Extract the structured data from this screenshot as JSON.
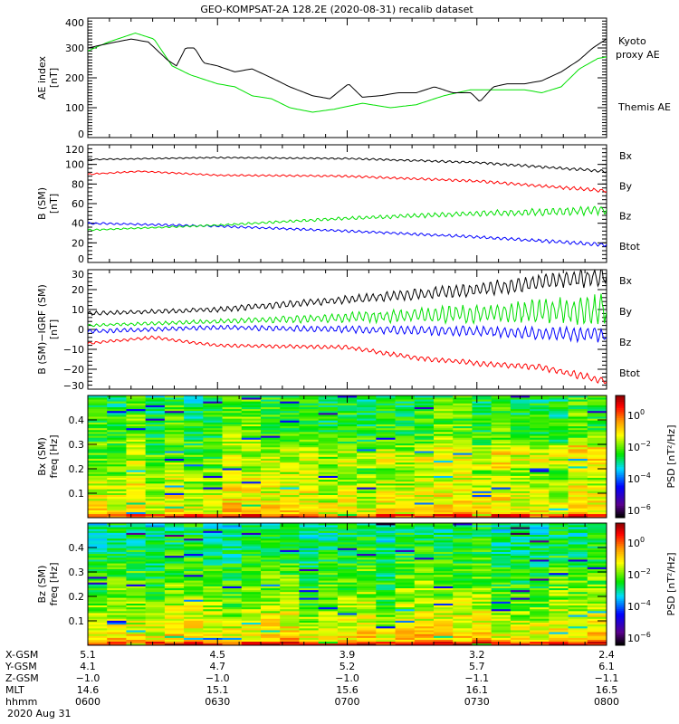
{
  "title": "GEO-KOMPSAT-2A 128.2E (2020-08-31) recalib dataset",
  "chart_data": [
    {
      "type": "line",
      "id": "ae",
      "ylabel": [
        "AE index",
        "[nT]"
      ],
      "ylim": [
        0,
        400
      ],
      "yticks": [
        0,
        100,
        200,
        300,
        400
      ],
      "xlim_minutes": [
        0,
        120
      ],
      "series": [
        {
          "name": "Kyoto proxy AE",
          "label_lines": [
            "Kyoto",
            "proxy AE"
          ],
          "color": "#00e000",
          "t": [
            0,
            4.8,
            11,
            15.3,
            19.5,
            23.7,
            30,
            34,
            38,
            42.5,
            46.7,
            52,
            57,
            63.5,
            70,
            76,
            82.3,
            88.6,
            95,
            101,
            105,
            109.5,
            113.7,
            118,
            120
          ],
          "values": [
            290,
            320,
            350,
            330,
            240,
            210,
            180,
            170,
            140,
            130,
            100,
            85,
            95,
            115,
            100,
            110,
            140,
            160,
            160,
            160,
            150,
            170,
            230,
            265,
            270
          ]
        },
        {
          "name": "Themis AE",
          "label_lines": [
            "Themis AE"
          ],
          "color": "#000000",
          "t": [
            0,
            4.8,
            10,
            14,
            18.4,
            20.5,
            22.6,
            24.7,
            26.8,
            30,
            34,
            38,
            42.5,
            46.7,
            52,
            56,
            60.3,
            63.5,
            67.6,
            71.8,
            76,
            80.2,
            84.4,
            88.6,
            90.7,
            93.8,
            97,
            101,
            105,
            109.5,
            113.7,
            116.8,
            120
          ],
          "values": [
            300,
            315,
            330,
            320,
            260,
            240,
            300,
            300,
            250,
            240,
            220,
            230,
            200,
            170,
            140,
            130,
            180,
            135,
            140,
            150,
            150,
            170,
            150,
            150,
            120,
            170,
            180,
            180,
            190,
            220,
            260,
            300,
            330
          ]
        }
      ]
    },
    {
      "type": "line",
      "id": "bsm",
      "ylabel": [
        "B (SM)",
        "[nT]"
      ],
      "ylim": [
        0,
        120
      ],
      "yticks": [
        0,
        20,
        40,
        60,
        80,
        100,
        120
      ],
      "xlim_minutes": [
        0,
        120
      ],
      "series": [
        {
          "name": "Bx",
          "color": "#0000ff",
          "t": [
            0,
            30,
            60,
            90,
            120
          ],
          "values": [
            40,
            37,
            32,
            26,
            18
          ],
          "oscillation": [
            0.8,
            1.5
          ]
        },
        {
          "name": "By",
          "color": "#00e000",
          "t": [
            0,
            30,
            60,
            90,
            120
          ],
          "values": [
            33,
            38,
            45,
            50,
            53
          ],
          "oscillation": [
            0.6,
            3.5
          ]
        },
        {
          "name": "Bz",
          "color": "#ff0000",
          "t": [
            0,
            12,
            30,
            60,
            90,
            120
          ],
          "values": [
            90,
            93,
            89,
            88,
            83,
            73
          ],
          "oscillation": [
            0.6,
            1.5
          ]
        },
        {
          "name": "Btot",
          "color": "#000000",
          "t": [
            0,
            30,
            60,
            90,
            120
          ],
          "values": [
            105,
            107,
            106,
            102,
            93
          ],
          "oscillation": [
            0.5,
            1.2
          ]
        }
      ]
    },
    {
      "type": "line",
      "id": "dbsm",
      "ylabel": [
        "B (SM)−IGRF (SM)",
        "[nT]"
      ],
      "ylim": [
        -30,
        30
      ],
      "yticks": [
        -30,
        -20,
        -10,
        0,
        10,
        20,
        30
      ],
      "xlim_minutes": [
        0,
        120
      ],
      "series": [
        {
          "name": "Bx",
          "color": "#0000ff",
          "t": [
            0,
            30,
            60,
            90,
            120
          ],
          "values": [
            -1,
            1,
            0,
            -1,
            -3
          ],
          "oscillation": [
            0.8,
            3
          ]
        },
        {
          "name": "By",
          "color": "#00e000",
          "t": [
            0,
            30,
            60,
            90,
            120
          ],
          "values": [
            2,
            4,
            6,
            8,
            10
          ],
          "oscillation": [
            0.6,
            6
          ]
        },
        {
          "name": "Bz",
          "color": "#ff0000",
          "t": [
            0,
            15,
            30,
            60,
            75,
            90,
            105,
            120
          ],
          "values": [
            -7,
            -4,
            -8,
            -9,
            -14,
            -17,
            -19,
            -26
          ],
          "oscillation": [
            0.6,
            1.5
          ]
        },
        {
          "name": "Btot",
          "color": "#000000",
          "t": [
            0,
            15,
            30,
            60,
            90,
            120
          ],
          "values": [
            8,
            9,
            10,
            15,
            20,
            27
          ],
          "oscillation": [
            0.8,
            4
          ]
        }
      ]
    },
    {
      "type": "heatmap",
      "id": "spec_bx",
      "ylabel": [
        "Bx (SM)",
        "freq [Hz]"
      ],
      "ylim": [
        0,
        0.5
      ],
      "yticks": [
        0.1,
        0.2,
        0.3,
        0.4
      ],
      "log10_psd_low_freq": -0.5,
      "log10_psd_high_freq": -2.6,
      "enhanced_band_hz": [
        0.2,
        0.3
      ],
      "seed": 7
    },
    {
      "type": "heatmap",
      "id": "spec_bz",
      "ylabel": [
        "Bz (SM)",
        "freq [Hz]"
      ],
      "ylim": [
        0,
        0.5
      ],
      "yticks": [
        0.1,
        0.2,
        0.3,
        0.4
      ],
      "log10_psd_low_freq": -0.3,
      "log10_psd_high_freq": -3.0,
      "enhanced_band_hz": [
        0,
        0
      ],
      "seed": 21
    }
  ],
  "colorbar": {
    "label": "PSD [nT²/Hz]",
    "range_log10": [
      -6.5,
      1.2
    ],
    "ticks": [
      {
        "base": "10",
        "exp": "0"
      },
      {
        "base": "10",
        "exp": "−2"
      },
      {
        "base": "10",
        "exp": "−4"
      },
      {
        "base": "10",
        "exp": "−6"
      }
    ],
    "tick_log10": [
      0,
      -2,
      -4,
      -6
    ]
  },
  "xaxis": {
    "row_labels": [
      "X-GSM",
      "Y-GSM",
      "Z-GSM",
      "MLT",
      "hhmm"
    ],
    "columns": [
      [
        "5.1",
        "4.1",
        "−1.0",
        "14.6",
        "0600"
      ],
      [
        "4.5",
        "4.7",
        "−1.0",
        "15.1",
        "0630"
      ],
      [
        "3.9",
        "5.2",
        "−1.0",
        "15.6",
        "0700"
      ],
      [
        "3.2",
        "5.7",
        "−1.1",
        "16.1",
        "0730"
      ],
      [
        "2.4",
        "6.1",
        "−1.1",
        "16.5",
        "0800"
      ]
    ],
    "date": "2020 Aug 31"
  }
}
